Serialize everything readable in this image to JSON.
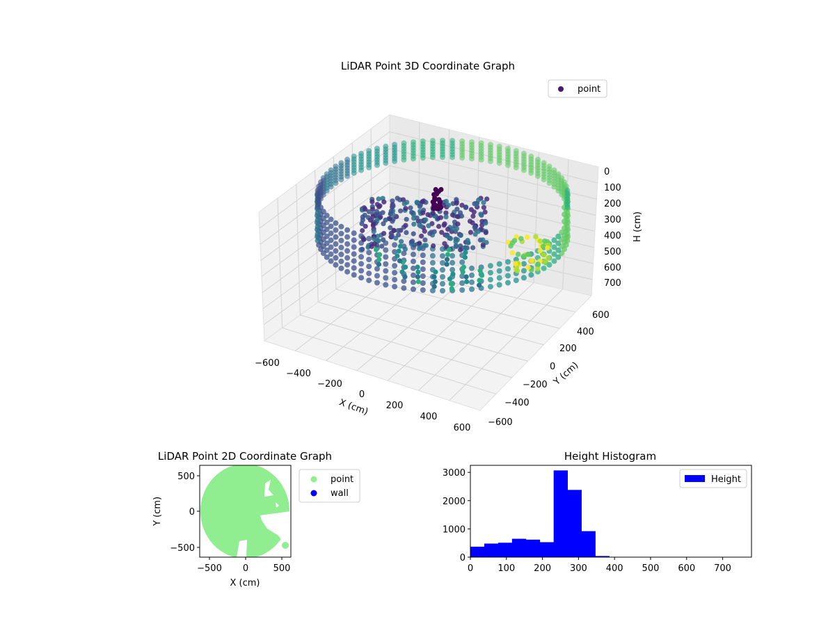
{
  "chart_data": [
    {
      "type": "scatter",
      "projection": "3d",
      "title": "LiDAR Point 3D Coordinate Graph",
      "xlabel": "X (cm)",
      "ylabel": "Y (cm)",
      "zlabel": "H (cm)",
      "xlim": [
        -650,
        650
      ],
      "ylim": [
        -650,
        650
      ],
      "zlim": [
        750,
        0
      ],
      "x_ticks": [
        "−600",
        "−400",
        "−200",
        "0",
        "200",
        "400",
        "600"
      ],
      "y_ticks": [
        "−600",
        "−400",
        "−200",
        "0",
        "200",
        "400",
        "600"
      ],
      "z_ticks": [
        "0",
        "100",
        "200",
        "300",
        "400",
        "500",
        "600",
        "700"
      ],
      "z_inverted": true,
      "colormap": "viridis",
      "grid": true,
      "legend": {
        "entries": [
          {
            "label": "point",
            "color": "#481a6c"
          }
        ],
        "position": "top-right"
      }
    },
    {
      "type": "scatter",
      "title": "LiDAR Point 2D Coordinate Graph",
      "xlabel": "X (cm)",
      "ylabel": "Y (cm)",
      "xlim": [
        -620,
        620
      ],
      "ylim": [
        -620,
        620
      ],
      "x_ticks": [
        "−500",
        "0",
        "500"
      ],
      "y_ticks": [
        "500",
        "0",
        "−500"
      ],
      "series": [
        {
          "name": "point",
          "color": "#90ee90"
        },
        {
          "name": "wall",
          "color": "#0000ff"
        }
      ],
      "legend": {
        "entries": [
          {
            "label": "point",
            "color": "#90ee90"
          },
          {
            "label": "wall",
            "color": "#0000ff"
          }
        ],
        "position": "outside-right"
      }
    },
    {
      "type": "bar",
      "subtype": "histogram",
      "title": "Height Histogram",
      "xlabel": "",
      "ylabel": "",
      "xlim": [
        0,
        780
      ],
      "ylim": [
        0,
        3250
      ],
      "x_ticks": [
        "0",
        "100",
        "200",
        "300",
        "400",
        "500",
        "600",
        "700"
      ],
      "y_ticks": [
        "0",
        "1000",
        "2000",
        "3000"
      ],
      "bin_edges": [
        0,
        38.5,
        77,
        115.5,
        154,
        192.5,
        231,
        269.5,
        308,
        346.5,
        385,
        423.5,
        462,
        500.5,
        539,
        577.5,
        616,
        654.5,
        693,
        731.5,
        770
      ],
      "series": [
        {
          "name": "Height",
          "color": "#0000ff",
          "values": [
            370,
            480,
            510,
            650,
            620,
            530,
            3070,
            2380,
            920,
            40,
            8,
            5,
            3,
            2,
            2,
            1,
            1,
            1,
            1,
            1
          ]
        }
      ],
      "legend": {
        "entries": [
          {
            "label": "Height",
            "color": "#0000ff"
          }
        ],
        "position": "top-right"
      }
    }
  ]
}
